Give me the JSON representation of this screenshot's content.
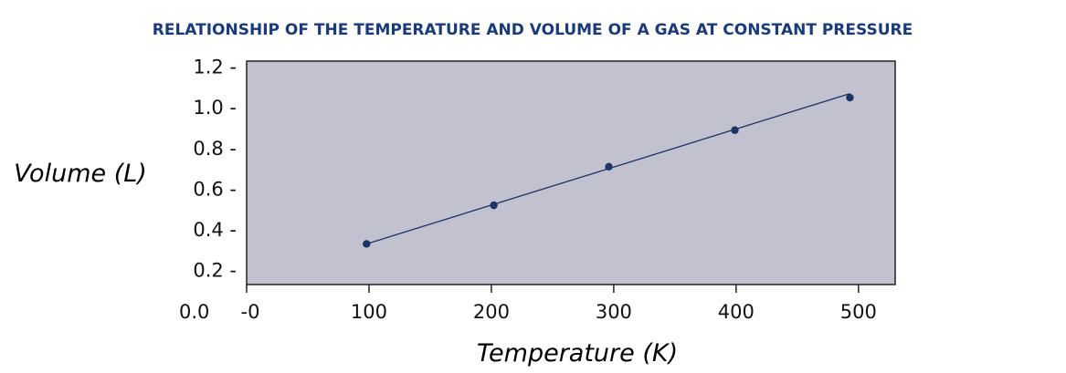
{
  "chart_data": {
    "type": "scatter",
    "title": "RELATIONSHIP OF THE TEMPERATURE AND VOLUME OF A GAS AT CONSTANT PRESSURE",
    "xlabel": "Temperature (K)",
    "ylabel": "Volume (L)",
    "xlim": [
      0,
      530
    ],
    "ylim": [
      0.13,
      1.23
    ],
    "x_ticks": [
      0,
      100,
      200,
      300,
      400,
      500
    ],
    "x_tick_labels": [
      "-0",
      "100",
      "200",
      "300",
      "400",
      "500"
    ],
    "y_ticks": [
      0.2,
      0.4,
      0.6,
      0.8,
      1.0,
      1.2
    ],
    "y_tick_labels": [
      "0.2 -",
      "0.4 -",
      "0.6 -",
      "0.8 -",
      "1.0 -",
      "1.2 -"
    ],
    "y_zero_label": "0.0",
    "series": [
      {
        "x": [
          98,
          202,
          296,
          399,
          493
        ],
        "y": [
          0.33,
          0.52,
          0.71,
          0.89,
          1.05
        ]
      }
    ],
    "trendline": {
      "x": [
        98,
        493
      ],
      "y": [
        0.33,
        1.07
      ]
    },
    "grid": false,
    "legend": "none",
    "colors": {
      "plot_background": "#c2c1cf",
      "marker": "#1c3466",
      "line": "#1c3466",
      "title": "#1a3a7a"
    }
  }
}
